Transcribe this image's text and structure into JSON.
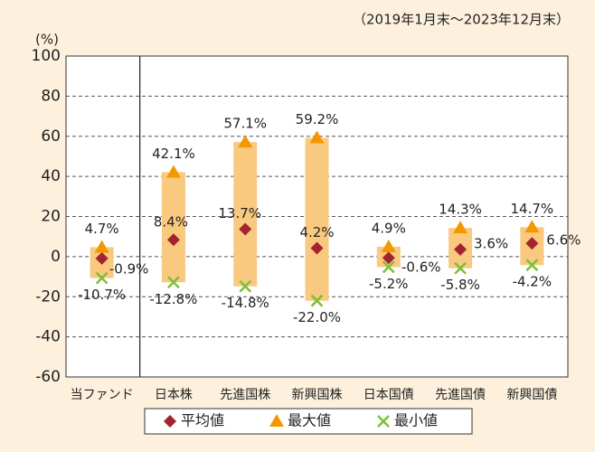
{
  "chart_data": {
    "type": "range",
    "subtitle": "（2019年1月末～2023年12月末）",
    "y_label": "(%)",
    "categories": [
      "当ファンド",
      "日本株",
      "先進国株",
      "新興国株",
      "日本国債",
      "先進国債",
      "新興国債"
    ],
    "range_color": "#f9c97f",
    "series": [
      {
        "name": "平均値",
        "color": "#a3232e",
        "marker": "diamond",
        "values": [
          -0.9,
          8.4,
          13.7,
          4.2,
          -0.6,
          3.6,
          6.6
        ],
        "value_labels": [
          "-0.9%",
          "8.4%",
          "13.7%",
          "4.2%",
          "-0.6%",
          "3.6%",
          "6.6%"
        ]
      },
      {
        "name": "最大値",
        "color": "#f39800",
        "marker": "triangle",
        "values": [
          4.7,
          42.1,
          57.1,
          59.2,
          4.9,
          14.3,
          14.7
        ],
        "value_labels": [
          "4.7%",
          "42.1%",
          "57.1%",
          "59.2%",
          "4.9%",
          "14.3%",
          "14.7%"
        ]
      },
      {
        "name": "最小値",
        "color": "#7dbf3a",
        "marker": "cross",
        "values": [
          -10.7,
          -12.8,
          -14.8,
          -22.0,
          -5.2,
          -5.8,
          -4.2
        ],
        "value_labels": [
          "-10.7%",
          "-12.8%",
          "-14.8%",
          "-22.0%",
          "-5.2%",
          "-5.8%",
          "-4.2%"
        ]
      }
    ],
    "ylim": [
      -60,
      100
    ],
    "yticks": [
      -60,
      -40,
      -20,
      0,
      20,
      40,
      60,
      80,
      100
    ],
    "grid": true
  }
}
